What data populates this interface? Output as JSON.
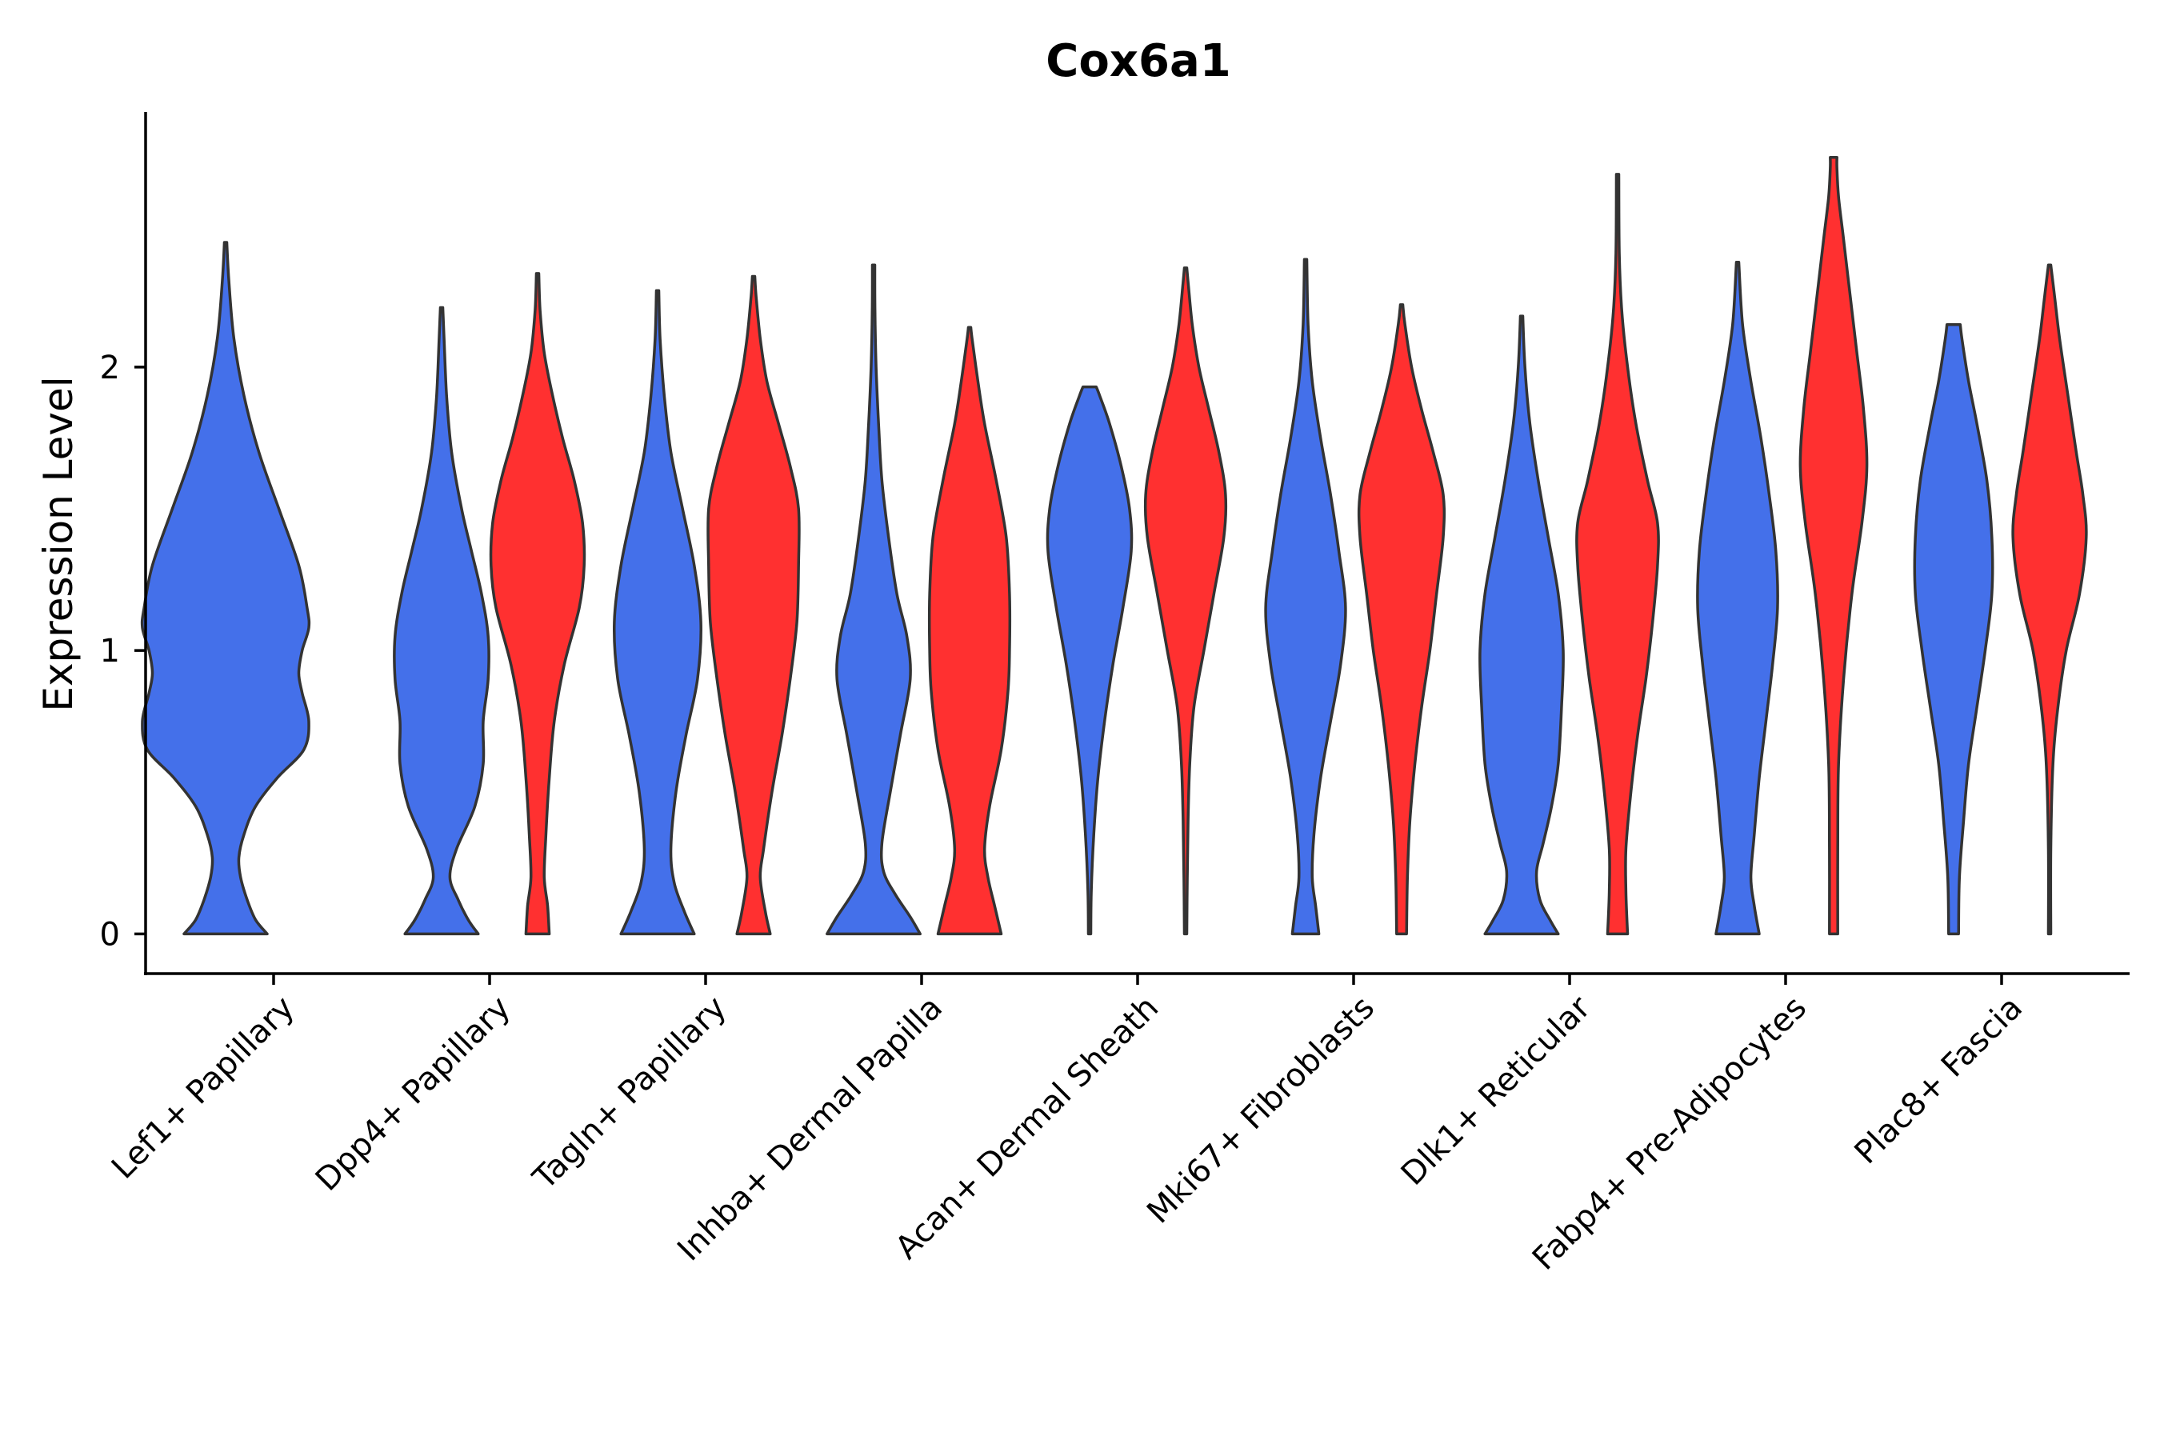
{
  "chart_data": {
    "type": "violin",
    "title": "Cox6a1",
    "xlabel": "",
    "ylabel": "Expression Level",
    "y_ticks": [
      0,
      1,
      2
    ],
    "ylim": [
      -0.14,
      2.9
    ],
    "grid": false,
    "legend": "none",
    "categories": [
      "Lef1+ Papillary",
      "Dpp4+ Papillary",
      "Tagln+ Papillary",
      "Inhba+ Dermal Papilla",
      "Acan+ Dermal Sheath",
      "Mki67+ Fibroblasts",
      "Dlk1+ Reticular",
      "Fabp4+ Pre-Adipocytes",
      "Plac8+ Fascia"
    ],
    "group_colors": {
      "A": "#4470EA",
      "B": "#FF3030"
    },
    "violins": [
      {
        "category": "Lef1+ Papillary",
        "group": "A",
        "max": 2.44,
        "profile": [
          [
            0,
            0.25
          ],
          [
            0.05,
            0.18
          ],
          [
            0.12,
            0.13
          ],
          [
            0.2,
            0.09
          ],
          [
            0.27,
            0.08
          ],
          [
            0.35,
            0.11
          ],
          [
            0.45,
            0.18
          ],
          [
            0.55,
            0.31
          ],
          [
            0.65,
            0.47
          ],
          [
            0.75,
            0.5
          ],
          [
            0.85,
            0.46
          ],
          [
            0.92,
            0.44
          ],
          [
            1.0,
            0.46
          ],
          [
            1.08,
            0.5
          ],
          [
            1.15,
            0.49
          ],
          [
            1.3,
            0.44
          ],
          [
            1.5,
            0.32
          ],
          [
            1.7,
            0.2
          ],
          [
            1.9,
            0.11
          ],
          [
            2.1,
            0.05
          ],
          [
            2.3,
            0.02
          ],
          [
            2.44,
            0.005
          ]
        ]
      },
      {
        "category": "Dpp4+ Papillary",
        "group": "A",
        "max": 2.21,
        "profile": [
          [
            0,
            0.22
          ],
          [
            0.05,
            0.16
          ],
          [
            0.12,
            0.1
          ],
          [
            0.2,
            0.05
          ],
          [
            0.3,
            0.09
          ],
          [
            0.45,
            0.2
          ],
          [
            0.6,
            0.25
          ],
          [
            0.75,
            0.25
          ],
          [
            0.9,
            0.28
          ],
          [
            1.05,
            0.28
          ],
          [
            1.2,
            0.24
          ],
          [
            1.35,
            0.18
          ],
          [
            1.5,
            0.12
          ],
          [
            1.7,
            0.06
          ],
          [
            1.9,
            0.03
          ],
          [
            2.1,
            0.015
          ],
          [
            2.21,
            0.005
          ]
        ]
      },
      {
        "category": "Dpp4+ Papillary",
        "group": "B",
        "max": 2.33,
        "profile": [
          [
            0,
            0.07
          ],
          [
            0.1,
            0.06
          ],
          [
            0.2,
            0.04
          ],
          [
            0.35,
            0.05
          ],
          [
            0.55,
            0.07
          ],
          [
            0.75,
            0.1
          ],
          [
            0.95,
            0.16
          ],
          [
            1.15,
            0.25
          ],
          [
            1.3,
            0.28
          ],
          [
            1.45,
            0.27
          ],
          [
            1.6,
            0.22
          ],
          [
            1.75,
            0.15
          ],
          [
            1.9,
            0.09
          ],
          [
            2.05,
            0.04
          ],
          [
            2.2,
            0.015
          ],
          [
            2.33,
            0.005
          ]
        ]
      },
      {
        "category": "Tagln+ Papillary",
        "group": "A",
        "max": 2.27,
        "profile": [
          [
            0,
            0.22
          ],
          [
            0.08,
            0.16
          ],
          [
            0.18,
            0.1
          ],
          [
            0.3,
            0.08
          ],
          [
            0.5,
            0.11
          ],
          [
            0.7,
            0.17
          ],
          [
            0.9,
            0.24
          ],
          [
            1.1,
            0.26
          ],
          [
            1.3,
            0.22
          ],
          [
            1.5,
            0.15
          ],
          [
            1.7,
            0.08
          ],
          [
            1.9,
            0.04
          ],
          [
            2.1,
            0.015
          ],
          [
            2.27,
            0.005
          ]
        ]
      },
      {
        "category": "Tagln+ Papillary",
        "group": "B",
        "max": 2.32,
        "profile": [
          [
            0,
            0.1
          ],
          [
            0.08,
            0.07
          ],
          [
            0.2,
            0.04
          ],
          [
            0.3,
            0.06
          ],
          [
            0.5,
            0.11
          ],
          [
            0.7,
            0.17
          ],
          [
            0.9,
            0.22
          ],
          [
            1.1,
            0.26
          ],
          [
            1.3,
            0.27
          ],
          [
            1.5,
            0.27
          ],
          [
            1.65,
            0.22
          ],
          [
            1.8,
            0.15
          ],
          [
            1.95,
            0.08
          ],
          [
            2.1,
            0.04
          ],
          [
            2.25,
            0.015
          ],
          [
            2.32,
            0.005
          ]
        ]
      },
      {
        "category": "Inhba+ Dermal Papilla",
        "group": "A",
        "max": 2.36,
        "profile": [
          [
            0,
            0.28
          ],
          [
            0.06,
            0.22
          ],
          [
            0.14,
            0.13
          ],
          [
            0.22,
            0.06
          ],
          [
            0.32,
            0.05
          ],
          [
            0.5,
            0.1
          ],
          [
            0.7,
            0.16
          ],
          [
            0.9,
            0.22
          ],
          [
            1.05,
            0.2
          ],
          [
            1.2,
            0.14
          ],
          [
            1.4,
            0.09
          ],
          [
            1.6,
            0.05
          ],
          [
            1.8,
            0.03
          ],
          [
            2.0,
            0.015
          ],
          [
            2.2,
            0.008
          ],
          [
            2.36,
            0.003
          ]
        ]
      },
      {
        "category": "Inhba+ Dermal Papilla",
        "group": "B",
        "max": 2.14,
        "profile": [
          [
            0,
            0.19
          ],
          [
            0.1,
            0.15
          ],
          [
            0.2,
            0.11
          ],
          [
            0.3,
            0.09
          ],
          [
            0.45,
            0.12
          ],
          [
            0.65,
            0.19
          ],
          [
            0.85,
            0.23
          ],
          [
            1.0,
            0.24
          ],
          [
            1.2,
            0.24
          ],
          [
            1.4,
            0.22
          ],
          [
            1.6,
            0.16
          ],
          [
            1.8,
            0.09
          ],
          [
            1.95,
            0.05
          ],
          [
            2.1,
            0.015
          ],
          [
            2.14,
            0.005
          ]
        ]
      },
      {
        "category": "Acan+ Dermal Sheath",
        "group": "A",
        "max": 1.93,
        "profile": [
          [
            0,
            0.005
          ],
          [
            0.15,
            0.01
          ],
          [
            0.35,
            0.025
          ],
          [
            0.55,
            0.05
          ],
          [
            0.75,
            0.09
          ],
          [
            0.95,
            0.14
          ],
          [
            1.15,
            0.2
          ],
          [
            1.35,
            0.25
          ],
          [
            1.5,
            0.24
          ],
          [
            1.65,
            0.19
          ],
          [
            1.8,
            0.12
          ],
          [
            1.9,
            0.06
          ],
          [
            1.93,
            0.04
          ]
        ]
      },
      {
        "category": "Acan+ Dermal Sheath",
        "group": "B",
        "max": 2.35,
        "profile": [
          [
            0,
            0.005
          ],
          [
            0.2,
            0.01
          ],
          [
            0.4,
            0.015
          ],
          [
            0.6,
            0.025
          ],
          [
            0.8,
            0.05
          ],
          [
            1.0,
            0.11
          ],
          [
            1.2,
            0.17
          ],
          [
            1.4,
            0.23
          ],
          [
            1.55,
            0.24
          ],
          [
            1.7,
            0.2
          ],
          [
            1.85,
            0.14
          ],
          [
            2.0,
            0.08
          ],
          [
            2.15,
            0.04
          ],
          [
            2.3,
            0.015
          ],
          [
            2.35,
            0.005
          ]
        ]
      },
      {
        "category": "Mki67+ Fibroblasts",
        "group": "A",
        "max": 2.38,
        "profile": [
          [
            0,
            0.08
          ],
          [
            0.1,
            0.06
          ],
          [
            0.2,
            0.04
          ],
          [
            0.35,
            0.05
          ],
          [
            0.55,
            0.09
          ],
          [
            0.75,
            0.15
          ],
          [
            0.95,
            0.21
          ],
          [
            1.15,
            0.24
          ],
          [
            1.35,
            0.2
          ],
          [
            1.55,
            0.15
          ],
          [
            1.75,
            0.09
          ],
          [
            1.95,
            0.04
          ],
          [
            2.15,
            0.015
          ],
          [
            2.38,
            0.003
          ]
        ]
      },
      {
        "category": "Mki67+ Fibroblasts",
        "group": "B",
        "max": 2.22,
        "profile": [
          [
            0,
            0.03
          ],
          [
            0.2,
            0.035
          ],
          [
            0.4,
            0.05
          ],
          [
            0.6,
            0.08
          ],
          [
            0.8,
            0.12
          ],
          [
            1.0,
            0.17
          ],
          [
            1.2,
            0.21
          ],
          [
            1.4,
            0.25
          ],
          [
            1.55,
            0.25
          ],
          [
            1.7,
            0.19
          ],
          [
            1.85,
            0.12
          ],
          [
            2.0,
            0.06
          ],
          [
            2.15,
            0.02
          ],
          [
            2.22,
            0.005
          ]
        ]
      },
      {
        "category": "Dlk1+ Reticular",
        "group": "A",
        "max": 2.18,
        "profile": [
          [
            0,
            0.22
          ],
          [
            0.05,
            0.17
          ],
          [
            0.12,
            0.11
          ],
          [
            0.22,
            0.09
          ],
          [
            0.32,
            0.13
          ],
          [
            0.45,
            0.18
          ],
          [
            0.6,
            0.22
          ],
          [
            0.8,
            0.24
          ],
          [
            1.0,
            0.25
          ],
          [
            1.2,
            0.22
          ],
          [
            1.4,
            0.16
          ],
          [
            1.6,
            0.1
          ],
          [
            1.8,
            0.05
          ],
          [
            2.0,
            0.02
          ],
          [
            2.18,
            0.005
          ]
        ]
      },
      {
        "category": "Dlk1+ Reticular",
        "group": "B",
        "max": 2.68,
        "profile": [
          [
            0,
            0.06
          ],
          [
            0.15,
            0.05
          ],
          [
            0.3,
            0.05
          ],
          [
            0.5,
            0.08
          ],
          [
            0.7,
            0.12
          ],
          [
            0.9,
            0.17
          ],
          [
            1.1,
            0.21
          ],
          [
            1.3,
            0.24
          ],
          [
            1.45,
            0.24
          ],
          [
            1.6,
            0.18
          ],
          [
            1.8,
            0.11
          ],
          [
            2.0,
            0.06
          ],
          [
            2.2,
            0.025
          ],
          [
            2.4,
            0.01
          ],
          [
            2.68,
            0.002
          ]
        ]
      },
      {
        "category": "Fabp4+ Pre-Adipocytes",
        "group": "A",
        "max": 2.37,
        "profile": [
          [
            0,
            0.13
          ],
          [
            0.1,
            0.1
          ],
          [
            0.2,
            0.08
          ],
          [
            0.35,
            0.1
          ],
          [
            0.55,
            0.13
          ],
          [
            0.75,
            0.17
          ],
          [
            0.95,
            0.21
          ],
          [
            1.15,
            0.24
          ],
          [
            1.35,
            0.23
          ],
          [
            1.55,
            0.19
          ],
          [
            1.75,
            0.14
          ],
          [
            1.95,
            0.08
          ],
          [
            2.15,
            0.03
          ],
          [
            2.37,
            0.005
          ]
        ]
      },
      {
        "category": "Fabp4+ Pre-Adipocytes",
        "group": "B",
        "max": 2.74,
        "profile": [
          [
            0,
            0.025
          ],
          [
            0.3,
            0.025
          ],
          [
            0.6,
            0.03
          ],
          [
            0.9,
            0.06
          ],
          [
            1.2,
            0.11
          ],
          [
            1.45,
            0.17
          ],
          [
            1.65,
            0.2
          ],
          [
            1.85,
            0.18
          ],
          [
            2.05,
            0.14
          ],
          [
            2.25,
            0.1
          ],
          [
            2.45,
            0.06
          ],
          [
            2.6,
            0.03
          ],
          [
            2.7,
            0.02
          ],
          [
            2.74,
            0.02
          ]
        ]
      },
      {
        "category": "Plac8+ Fascia",
        "group": "A",
        "max": 2.15,
        "profile": [
          [
            0,
            0.03
          ],
          [
            0.2,
            0.035
          ],
          [
            0.4,
            0.06
          ],
          [
            0.6,
            0.09
          ],
          [
            0.8,
            0.14
          ],
          [
            1.0,
            0.19
          ],
          [
            1.2,
            0.23
          ],
          [
            1.4,
            0.23
          ],
          [
            1.6,
            0.2
          ],
          [
            1.8,
            0.14
          ],
          [
            1.95,
            0.09
          ],
          [
            2.1,
            0.05
          ],
          [
            2.15,
            0.04
          ]
        ]
      },
      {
        "category": "Plac8+ Fascia",
        "group": "B",
        "max": 2.36,
        "profile": [
          [
            0,
            0.003
          ],
          [
            0.3,
            0.006
          ],
          [
            0.6,
            0.02
          ],
          [
            0.8,
            0.05
          ],
          [
            1.0,
            0.1
          ],
          [
            1.2,
            0.18
          ],
          [
            1.4,
            0.22
          ],
          [
            1.55,
            0.2
          ],
          [
            1.7,
            0.16
          ],
          [
            1.9,
            0.11
          ],
          [
            2.1,
            0.06
          ],
          [
            2.25,
            0.03
          ],
          [
            2.36,
            0.005
          ]
        ]
      }
    ]
  }
}
